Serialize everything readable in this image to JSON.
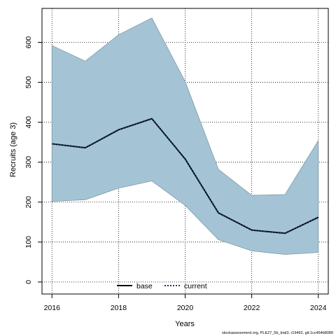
{
  "chart_data": {
    "type": "line",
    "xlabel": "Years",
    "ylabel": "Recruits (age 3)",
    "xlim": [
      2015.7,
      2024.3
    ],
    "ylim": [
      -30,
      685
    ],
    "x": [
      2016,
      2017,
      2018,
      2019,
      2020,
      2021,
      2022,
      2023,
      2024
    ],
    "x_ticks": [
      2016,
      2018,
      2020,
      2022,
      2024
    ],
    "y_ticks": [
      0,
      100,
      200,
      300,
      400,
      500,
      600
    ],
    "grid": true,
    "series": [
      {
        "name": "base",
        "style": "solid",
        "color": "#000000",
        "values": [
          346,
          336,
          381,
          409,
          308,
          173,
          130,
          122,
          162
        ]
      },
      {
        "name": "current",
        "style": "dotted",
        "color": "#1b3a6b",
        "values": [
          346,
          336,
          381,
          409,
          308,
          173,
          130,
          122,
          162
        ]
      }
    ],
    "confidence_band": {
      "color": "#a4c4d5",
      "upper": [
        592,
        553,
        619,
        661,
        502,
        282,
        217,
        219,
        354
      ],
      "lower": [
        202,
        206,
        235,
        253,
        192,
        106,
        78,
        69,
        74
      ]
    },
    "legend": {
      "placement": "bottom-center",
      "entries": [
        "base",
        "current"
      ]
    }
  },
  "footer": "stockassessment.org, PLE27_5b_trial3, r19462, git:1cc464b8089"
}
